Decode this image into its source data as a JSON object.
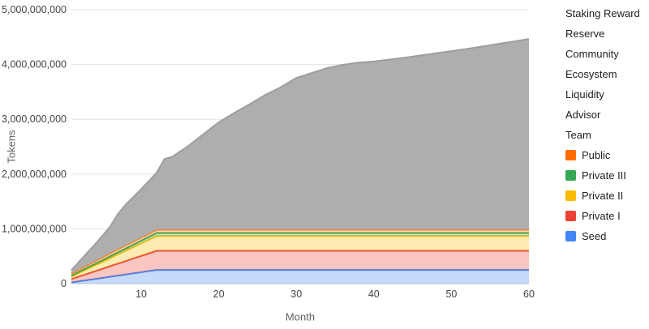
{
  "page": {
    "background": "#ffffff"
  },
  "chart_data": {
    "type": "area",
    "stacked": true,
    "title": "",
    "xlabel": "Month",
    "ylabel": "Tokens",
    "xlim": [
      1,
      60
    ],
    "ylim": [
      0,
      5000000000
    ],
    "grid": true,
    "legend_position": "right",
    "value_multiplier": 1000000,
    "values_unit": "millions of tokens",
    "grid_color": "#e3e3e3",
    "axis_line_color": "#c9c9c9",
    "tick_label_color": "#444444",
    "axis_title_color": "#616161",
    "x_ticks": [
      {
        "value": 10,
        "label": "10"
      },
      {
        "value": 20,
        "label": "20"
      },
      {
        "value": 30,
        "label": "30"
      },
      {
        "value": 40,
        "label": "40"
      },
      {
        "value": 50,
        "label": "50"
      },
      {
        "value": 60,
        "label": "60"
      }
    ],
    "y_ticks": [
      {
        "value": 0,
        "label": "0"
      },
      {
        "value": 1000000000,
        "label": "1,000,000,000"
      },
      {
        "value": 2000000000,
        "label": "2,000,000,000"
      },
      {
        "value": 3000000000,
        "label": "3,000,000,000"
      },
      {
        "value": 4000000000,
        "label": "4,000,000,000"
      },
      {
        "value": 5000000000,
        "label": "5,000,000,000"
      }
    ],
    "x": [
      1,
      2,
      3,
      4,
      5,
      6,
      7,
      8,
      9,
      10,
      11,
      12,
      13,
      14,
      16,
      18,
      20,
      22,
      24,
      26,
      28,
      30,
      32,
      34,
      36,
      38,
      40,
      44,
      48,
      52,
      56,
      60
    ],
    "series": [
      {
        "name": "Seed",
        "color": "#4285f4",
        "fill_opacity": 0.3,
        "values": [
          21,
          42,
          63,
          83,
          104,
          125,
          146,
          167,
          188,
          208,
          229,
          250,
          250,
          250,
          250,
          250,
          250,
          250,
          250,
          250,
          250,
          250,
          250,
          250,
          250,
          250,
          250,
          250,
          250,
          250,
          250,
          250
        ]
      },
      {
        "name": "Private I",
        "color": "#ea4335",
        "fill_opacity": 0.3,
        "values": [
          61,
          88,
          114,
          140,
          166,
          193,
          219,
          245,
          271,
          298,
          324,
          350,
          350,
          350,
          350,
          350,
          350,
          350,
          350,
          350,
          350,
          350,
          350,
          350,
          350,
          350,
          350,
          350,
          350,
          350,
          350,
          350
        ]
      },
      {
        "name": "Private II",
        "color": "#fbbc04",
        "fill_opacity": 0.3,
        "values": [
          47,
          68,
          88,
          108,
          128,
          149,
          169,
          189,
          209,
          230,
          250,
          270,
          270,
          270,
          270,
          270,
          270,
          270,
          270,
          270,
          270,
          270,
          270,
          270,
          270,
          270,
          270,
          270,
          270,
          270,
          270,
          270
        ]
      },
      {
        "name": "Private III",
        "color": "#34a853",
        "fill_opacity": 0.3,
        "values": [
          15,
          18,
          22,
          26,
          29,
          33,
          37,
          40,
          44,
          48,
          51,
          55,
          55,
          55,
          55,
          55,
          55,
          55,
          55,
          55,
          55,
          55,
          55,
          55,
          55,
          55,
          55,
          55,
          55,
          55,
          55,
          55
        ]
      },
      {
        "name": "Public",
        "color": "#ff6d01",
        "fill_opacity": 0.3,
        "values": [
          40,
          44,
          48,
          52,
          56,
          60,
          60,
          60,
          60,
          60,
          60,
          60,
          60,
          60,
          60,
          60,
          60,
          60,
          60,
          60,
          60,
          60,
          60,
          60,
          60,
          60,
          60,
          60,
          60,
          60,
          60,
          60
        ]
      },
      {
        "name": "Team, Advisor, Liquidity, Ecosystem, Community, Reserve, Staking Reward (combined)",
        "color": "#aeaeae",
        "line_color": "#9e9e9e",
        "fill_opacity": 1,
        "note": "Upper gray band; individual series boundaries are not distinguishable in the chart",
        "values": [
          60,
          140,
          220,
          300,
          390,
          480,
          640,
          740,
          810,
          880,
          960,
          1040,
          1290,
          1330,
          1520,
          1740,
          1960,
          2130,
          2290,
          2460,
          2600,
          2770,
          2860,
          2950,
          3010,
          3050,
          3070,
          3140,
          3220,
          3300,
          3390,
          3480
        ]
      }
    ]
  },
  "legend": {
    "items": [
      {
        "label": "Staking Reward",
        "color": null
      },
      {
        "label": "Reserve",
        "color": null
      },
      {
        "label": "Community",
        "color": null
      },
      {
        "label": "Ecosystem",
        "color": null
      },
      {
        "label": "Liquidity",
        "color": null
      },
      {
        "label": "Advisor",
        "color": null
      },
      {
        "label": "Team",
        "color": null
      },
      {
        "label": "Public",
        "color": "#ff6d01"
      },
      {
        "label": "Private III",
        "color": "#34a853"
      },
      {
        "label": "Private II",
        "color": "#fbbc04"
      },
      {
        "label": "Private I",
        "color": "#ea4335"
      },
      {
        "label": "Seed",
        "color": "#4285f4"
      }
    ]
  }
}
